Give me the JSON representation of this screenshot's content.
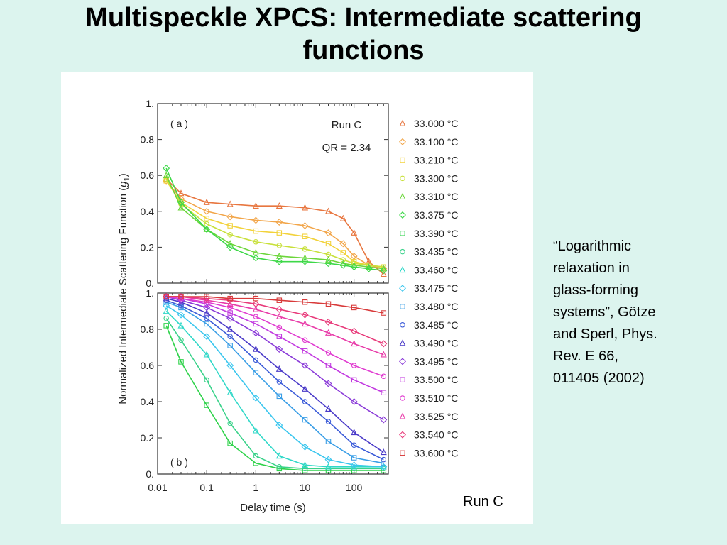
{
  "slide": {
    "title_line1": "Multispeckle XPCS: Intermediate scattering",
    "title_line2": "functions",
    "figure_caption": "Run C",
    "citation_lines": [
      "“Logarithmic",
      "relaxation in",
      "glass-forming",
      "systems”, Götze",
      "and Sperl, Phys.",
      "Rev. E 66,",
      "011405 (2002)"
    ]
  },
  "chart_data": {
    "type": "scatter",
    "xlabel": "Delay time (s)",
    "ylabel": "Normalized Intermediate Scattering Function (g1)",
    "ylabel_main": "Normalized Intermediate Scattering Function (",
    "ylabel_sym": "g",
    "ylabel_sub": "1",
    "ylabel_end": ")",
    "xscale": "log",
    "xlim": [
      0.01,
      500
    ],
    "x_ticks": [
      0.01,
      0.1,
      1,
      10,
      100
    ],
    "x_tick_labels": [
      "0.01",
      "0.1",
      "1",
      "10",
      "100"
    ],
    "legend_placement": "right",
    "panels": [
      {
        "label": "( a )",
        "annotations": [
          "Run C",
          "QR = 2.34"
        ],
        "ylim": [
          0,
          1
        ],
        "y_ticks": [
          0,
          0.2,
          0.4,
          0.6,
          0.8,
          1
        ],
        "y_tick_labels": [
          "0.",
          "0.2",
          "0.4",
          "0.6",
          "0.8",
          "1."
        ],
        "series": [
          {
            "name": "33.000 °C",
            "color": "#e8763f",
            "marker": "triangle",
            "x": [
              0.015,
              0.03,
              0.1,
              0.3,
              1,
              3,
              10,
              30,
              60,
              100,
              200,
              400
            ],
            "y": [
              0.58,
              0.5,
              0.45,
              0.44,
              0.43,
              0.43,
              0.42,
              0.4,
              0.36,
              0.28,
              0.12,
              0.05
            ]
          },
          {
            "name": "33.100 °C",
            "color": "#f2a64a",
            "marker": "diamond",
            "x": [
              0.015,
              0.03,
              0.1,
              0.3,
              1,
              3,
              10,
              30,
              60,
              100,
              200,
              400
            ],
            "y": [
              0.57,
              0.47,
              0.4,
              0.37,
              0.35,
              0.34,
              0.32,
              0.28,
              0.22,
              0.15,
              0.1,
              0.08
            ]
          },
          {
            "name": "33.210 °C",
            "color": "#f2d23a",
            "marker": "square",
            "x": [
              0.015,
              0.03,
              0.1,
              0.3,
              1,
              3,
              10,
              30,
              60,
              100,
              200,
              400
            ],
            "y": [
              0.57,
              0.45,
              0.36,
              0.32,
              0.29,
              0.28,
              0.26,
              0.22,
              0.17,
              0.12,
              0.1,
              0.09
            ]
          },
          {
            "name": "33.300 °C",
            "color": "#c8e03a",
            "marker": "circle",
            "x": [
              0.015,
              0.03,
              0.1,
              0.3,
              1,
              3,
              10,
              30,
              60,
              100,
              200,
              400
            ],
            "y": [
              0.58,
              0.44,
              0.33,
              0.27,
              0.23,
              0.21,
              0.19,
              0.16,
              0.13,
              0.11,
              0.1,
              0.09
            ]
          },
          {
            "name": "33.310 °C",
            "color": "#6cd63a",
            "marker": "triangle",
            "x": [
              0.015,
              0.03,
              0.1,
              0.3,
              1,
              3,
              10,
              30,
              60,
              100,
              200,
              400
            ],
            "y": [
              0.6,
              0.42,
              0.3,
              0.22,
              0.17,
              0.15,
              0.14,
              0.13,
              0.11,
              0.1,
              0.09,
              0.08
            ]
          },
          {
            "name": "33.375 °C",
            "color": "#3dd848",
            "marker": "diamond",
            "x": [
              0.015,
              0.03,
              0.1,
              0.3,
              1,
              3,
              10,
              30,
              60,
              100,
              200,
              400
            ],
            "y": [
              0.64,
              0.45,
              0.3,
              0.2,
              0.14,
              0.12,
              0.12,
              0.11,
              0.1,
              0.09,
              0.08,
              0.07
            ]
          }
        ]
      },
      {
        "label": "( b )",
        "annotations": [],
        "ylim": [
          0,
          1
        ],
        "y_ticks": [
          0,
          0.2,
          0.4,
          0.6,
          0.8,
          1
        ],
        "y_tick_labels": [
          "0.",
          "0.2",
          "0.4",
          "0.6",
          "0.8",
          "1."
        ],
        "series": [
          {
            "name": "33.390 °C",
            "color": "#2ed24a",
            "marker": "square",
            "x": [
              0.015,
              0.03,
              0.1,
              0.3,
              1,
              3,
              10,
              30,
              100,
              400
            ],
            "y": [
              0.82,
              0.62,
              0.38,
              0.17,
              0.06,
              0.03,
              0.02,
              0.02,
              0.02,
              0.02
            ]
          },
          {
            "name": "33.435 °C",
            "color": "#3ad28a",
            "marker": "circle",
            "x": [
              0.015,
              0.03,
              0.1,
              0.3,
              1,
              3,
              10,
              30,
              100,
              400
            ],
            "y": [
              0.86,
              0.74,
              0.52,
              0.28,
              0.1,
              0.04,
              0.03,
              0.03,
              0.03,
              0.03
            ]
          },
          {
            "name": "33.460 °C",
            "color": "#2fd8c8",
            "marker": "triangle",
            "x": [
              0.015,
              0.03,
              0.1,
              0.3,
              1,
              3,
              10,
              30,
              100,
              400
            ],
            "y": [
              0.9,
              0.82,
              0.66,
              0.45,
              0.24,
              0.1,
              0.05,
              0.04,
              0.04,
              0.04
            ]
          },
          {
            "name": "33.475 °C",
            "color": "#3ac6ee",
            "marker": "diamond",
            "x": [
              0.015,
              0.03,
              0.1,
              0.3,
              1,
              3,
              10,
              30,
              100,
              400
            ],
            "y": [
              0.93,
              0.88,
              0.76,
              0.6,
              0.42,
              0.27,
              0.15,
              0.08,
              0.05,
              0.04
            ]
          },
          {
            "name": "33.480 °C",
            "color": "#3a9ee6",
            "marker": "square",
            "x": [
              0.015,
              0.03,
              0.1,
              0.3,
              1,
              3,
              10,
              30,
              100,
              400
            ],
            "y": [
              0.95,
              0.92,
              0.83,
              0.71,
              0.56,
              0.43,
              0.3,
              0.18,
              0.09,
              0.06
            ]
          },
          {
            "name": "33.485 °C",
            "color": "#3a5ad8",
            "marker": "circle",
            "x": [
              0.015,
              0.03,
              0.1,
              0.3,
              1,
              3,
              10,
              30,
              100,
              400
            ],
            "y": [
              0.96,
              0.93,
              0.86,
              0.76,
              0.63,
              0.51,
              0.4,
              0.29,
              0.16,
              0.08
            ]
          },
          {
            "name": "33.490 °C",
            "color": "#4a3ac8",
            "marker": "triangle",
            "x": [
              0.015,
              0.03,
              0.1,
              0.3,
              1,
              3,
              10,
              30,
              100,
              400
            ],
            "y": [
              0.97,
              0.95,
              0.89,
              0.8,
              0.69,
              0.58,
              0.47,
              0.36,
              0.23,
              0.12
            ]
          },
          {
            "name": "33.495 °C",
            "color": "#8a3ad8",
            "marker": "diamond",
            "x": [
              0.015,
              0.03,
              0.1,
              0.3,
              1,
              3,
              10,
              30,
              100,
              400
            ],
            "y": [
              0.98,
              0.96,
              0.92,
              0.86,
              0.78,
              0.69,
              0.6,
              0.5,
              0.4,
              0.3
            ]
          },
          {
            "name": "33.500 °C",
            "color": "#c23ae0",
            "marker": "square",
            "x": [
              0.015,
              0.03,
              0.1,
              0.3,
              1,
              3,
              10,
              30,
              100,
              400
            ],
            "y": [
              0.98,
              0.97,
              0.94,
              0.89,
              0.83,
              0.76,
              0.68,
              0.6,
              0.52,
              0.45
            ]
          },
          {
            "name": "33.510 °C",
            "color": "#e03ad0",
            "marker": "circle",
            "x": [
              0.015,
              0.03,
              0.1,
              0.3,
              1,
              3,
              10,
              30,
              100,
              400
            ],
            "y": [
              0.98,
              0.97,
              0.95,
              0.92,
              0.87,
              0.81,
              0.74,
              0.67,
              0.6,
              0.54
            ]
          },
          {
            "name": "33.525 °C",
            "color": "#e83aa8",
            "marker": "triangle",
            "x": [
              0.015,
              0.03,
              0.1,
              0.3,
              1,
              3,
              10,
              30,
              100,
              400
            ],
            "y": [
              0.98,
              0.98,
              0.96,
              0.94,
              0.91,
              0.87,
              0.83,
              0.78,
              0.72,
              0.66
            ]
          },
          {
            "name": "33.540 °C",
            "color": "#e83a7a",
            "marker": "diamond",
            "x": [
              0.015,
              0.03,
              0.1,
              0.3,
              1,
              3,
              10,
              30,
              100,
              400
            ],
            "y": [
              0.98,
              0.98,
              0.97,
              0.96,
              0.94,
              0.91,
              0.88,
              0.84,
              0.79,
              0.72
            ]
          },
          {
            "name": "33.600 °C",
            "color": "#d83a3a",
            "marker": "square",
            "x": [
              0.015,
              0.03,
              0.1,
              0.3,
              1,
              3,
              10,
              30,
              100,
              400
            ],
            "y": [
              0.98,
              0.98,
              0.98,
              0.97,
              0.97,
              0.96,
              0.95,
              0.94,
              0.92,
              0.89
            ]
          }
        ]
      }
    ]
  }
}
